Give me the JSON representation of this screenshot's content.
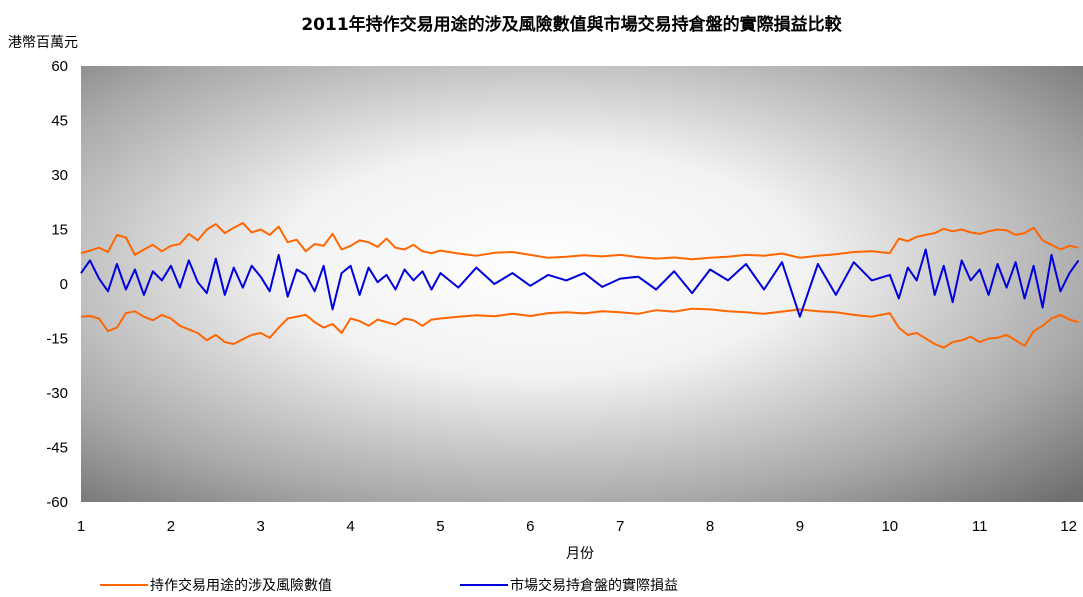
{
  "chart_data": {
    "type": "line",
    "title": "2011年持作交易用途的涉及風險數值與市場交易持倉盤的實際損益比較",
    "ylabel": "港幣百萬元",
    "xlabel": "月份",
    "ylim": [
      -60,
      60
    ],
    "yticks": [
      "60",
      "45",
      "30",
      "15",
      "0",
      "-15",
      "-30",
      "-45",
      "-60"
    ],
    "xlim": [
      1,
      12.15
    ],
    "xticks": [
      "1",
      "2",
      "3",
      "4",
      "5",
      "6",
      "7",
      "8",
      "9",
      "10",
      "11",
      "12"
    ],
    "legend_position": "bottom",
    "series": [
      {
        "name": "持作交易用途的涉及風險數值",
        "color": "#ff6600",
        "x": [
          1.0,
          1.1,
          1.2,
          1.3,
          1.4,
          1.5,
          1.6,
          1.7,
          1.8,
          1.9,
          2.0,
          2.1,
          2.2,
          2.3,
          2.4,
          2.5,
          2.6,
          2.7,
          2.8,
          2.9,
          3.0,
          3.1,
          3.2,
          3.3,
          3.4,
          3.5,
          3.6,
          3.7,
          3.8,
          3.9,
          4.0,
          4.1,
          4.2,
          4.3,
          4.4,
          4.5,
          4.6,
          4.7,
          4.8,
          4.9,
          5.0,
          5.2,
          5.4,
          5.6,
          5.8,
          6.0,
          6.2,
          6.4,
          6.6,
          6.8,
          7.0,
          7.2,
          7.4,
          7.6,
          7.8,
          8.0,
          8.2,
          8.4,
          8.6,
          8.8,
          9.0,
          9.2,
          9.4,
          9.6,
          9.8,
          10.0,
          10.1,
          10.2,
          10.3,
          10.4,
          10.5,
          10.6,
          10.7,
          10.8,
          10.9,
          11.0,
          11.1,
          11.2,
          11.3,
          11.4,
          11.5,
          11.6,
          11.7,
          11.8,
          11.9,
          12.0,
          12.1
        ],
        "values": [
          8.5,
          9.2,
          10.0,
          8.8,
          13.5,
          12.8,
          8.0,
          9.5,
          10.8,
          9.0,
          10.5,
          11.0,
          13.8,
          12.0,
          15.0,
          16.5,
          14.0,
          15.5,
          16.8,
          14.2,
          15.0,
          13.5,
          15.8,
          11.5,
          12.2,
          9.0,
          11.0,
          10.5,
          13.8,
          9.5,
          10.5,
          12.0,
          11.5,
          10.2,
          12.5,
          10.0,
          9.5,
          10.8,
          9.0,
          8.5,
          9.2,
          8.4,
          7.8,
          8.6,
          8.8,
          8.0,
          7.2,
          7.5,
          7.9,
          7.6,
          8.0,
          7.4,
          7.0,
          7.3,
          6.8,
          7.2,
          7.5,
          8.0,
          7.8,
          8.4,
          7.2,
          7.8,
          8.2,
          8.8,
          9.0,
          8.5,
          12.5,
          11.8,
          13.0,
          13.5,
          14.0,
          15.2,
          14.5,
          15.0,
          14.2,
          13.8,
          14.5,
          15.0,
          14.8,
          13.5,
          14.0,
          15.5,
          12.0,
          10.8,
          9.5,
          10.5,
          10.0
        ],
        "values_lower": [
          -9.0,
          -8.8,
          -9.5,
          -13.0,
          -12.0,
          -8.0,
          -7.5,
          -9.0,
          -10.0,
          -8.5,
          -9.5,
          -11.5,
          -12.5,
          -13.5,
          -15.5,
          -14.0,
          -16.0,
          -16.5,
          -15.2,
          -14.0,
          -13.5,
          -14.8,
          -12.0,
          -9.5,
          -9.0,
          -8.5,
          -10.5,
          -12.0,
          -11.0,
          -13.5,
          -9.5,
          -10.2,
          -11.5,
          -9.8,
          -10.5,
          -11.2,
          -9.5,
          -10.0,
          -11.5,
          -9.8,
          -9.5,
          -9.0,
          -8.6,
          -8.9,
          -8.2,
          -8.8,
          -8.0,
          -7.8,
          -8.1,
          -7.5,
          -7.8,
          -8.2,
          -7.2,
          -7.6,
          -6.8,
          -7.0,
          -7.5,
          -7.8,
          -8.2,
          -7.6,
          -7.0,
          -7.5,
          -7.8,
          -8.5,
          -9.0,
          -8.0,
          -12.0,
          -14.0,
          -13.5,
          -15.0,
          -16.5,
          -17.5,
          -16.0,
          -15.5,
          -14.5,
          -16.0,
          -15.0,
          -14.8,
          -14.0,
          -15.5,
          -17.0,
          -13.0,
          -11.5,
          -9.5,
          -8.5,
          -9.8,
          -10.5
        ]
      },
      {
        "name": "市場交易持倉盤的實際損益",
        "color": "#0000dd",
        "x": [
          1.0,
          1.1,
          1.2,
          1.3,
          1.4,
          1.5,
          1.6,
          1.7,
          1.8,
          1.9,
          2.0,
          2.1,
          2.2,
          2.3,
          2.4,
          2.5,
          2.6,
          2.7,
          2.8,
          2.9,
          3.0,
          3.1,
          3.2,
          3.3,
          3.4,
          3.5,
          3.6,
          3.7,
          3.8,
          3.9,
          4.0,
          4.1,
          4.2,
          4.3,
          4.4,
          4.5,
          4.6,
          4.7,
          4.8,
          4.9,
          5.0,
          5.2,
          5.4,
          5.6,
          5.8,
          6.0,
          6.2,
          6.4,
          6.6,
          6.8,
          7.0,
          7.2,
          7.4,
          7.6,
          7.8,
          8.0,
          8.2,
          8.4,
          8.6,
          8.8,
          9.0,
          9.2,
          9.4,
          9.6,
          9.8,
          10.0,
          10.1,
          10.2,
          10.3,
          10.4,
          10.5,
          10.6,
          10.7,
          10.8,
          10.9,
          11.0,
          11.1,
          11.2,
          11.3,
          11.4,
          11.5,
          11.6,
          11.7,
          11.8,
          11.9,
          12.0,
          12.1
        ],
        "values": [
          3.0,
          6.5,
          1.5,
          -2.0,
          5.5,
          -1.5,
          4.0,
          -3.0,
          3.5,
          1.0,
          5.0,
          -1.0,
          6.5,
          0.5,
          -2.5,
          7.0,
          -3.0,
          4.5,
          -1.0,
          5.0,
          2.0,
          -2.0,
          8.0,
          -3.5,
          4.0,
          2.5,
          -2.0,
          5.0,
          -7.0,
          3.0,
          5.0,
          -3.0,
          4.5,
          0.5,
          2.5,
          -1.5,
          4.0,
          1.0,
          3.5,
          -1.5,
          3.0,
          -1.0,
          4.5,
          0.0,
          3.0,
          -0.5,
          2.5,
          1.0,
          3.0,
          -0.8,
          1.5,
          2.0,
          -1.5,
          3.5,
          -2.5,
          4.0,
          1.0,
          5.5,
          -1.5,
          6.0,
          -9.0,
          5.5,
          -3.0,
          6.0,
          1.0,
          2.5,
          -4.0,
          4.5,
          1.0,
          9.5,
          -3.0,
          5.0,
          -5.0,
          6.5,
          1.0,
          4.0,
          -3.0,
          5.5,
          -1.0,
          6.0,
          -4.0,
          5.0,
          -6.5,
          8.0,
          -2.0,
          3.0,
          6.5
        ]
      }
    ]
  }
}
